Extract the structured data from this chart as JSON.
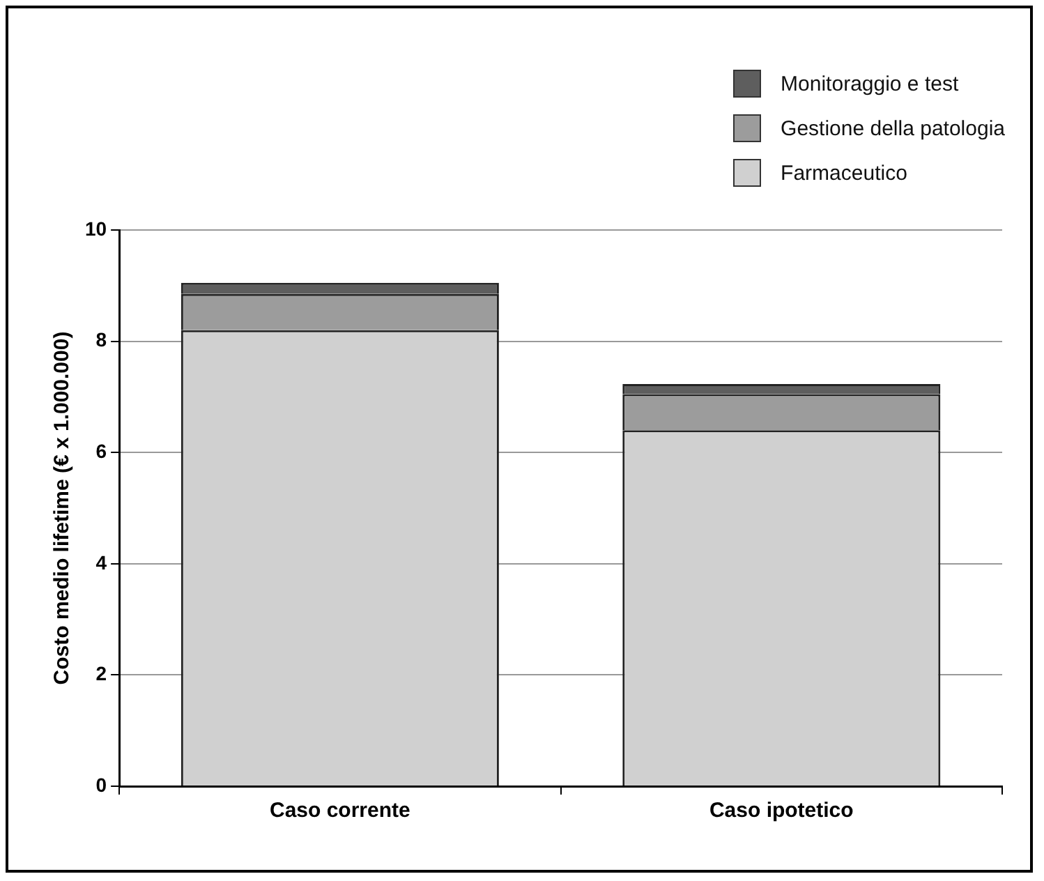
{
  "chart_data": {
    "type": "bar",
    "stacked": true,
    "ylabel": "Costo medio lifetime (€ x 1.000.000)",
    "categories": [
      "Caso corrente",
      "Caso ipotetico"
    ],
    "series": [
      {
        "name": "Farmaceutico",
        "color": "#d0d0d0",
        "values": [
          8.2,
          6.4
        ]
      },
      {
        "name": "Gestione della patologia",
        "color": "#9c9c9c",
        "values": [
          0.65,
          0.65
        ]
      },
      {
        "name": "Monitoraggio e test",
        "color": "#5e5e5e",
        "values": [
          0.2,
          0.18
        ]
      }
    ],
    "ylim": [
      0,
      10
    ],
    "yticks": [
      0,
      2,
      4,
      6,
      8,
      10
    ],
    "grid": "y",
    "legend": "top right"
  }
}
